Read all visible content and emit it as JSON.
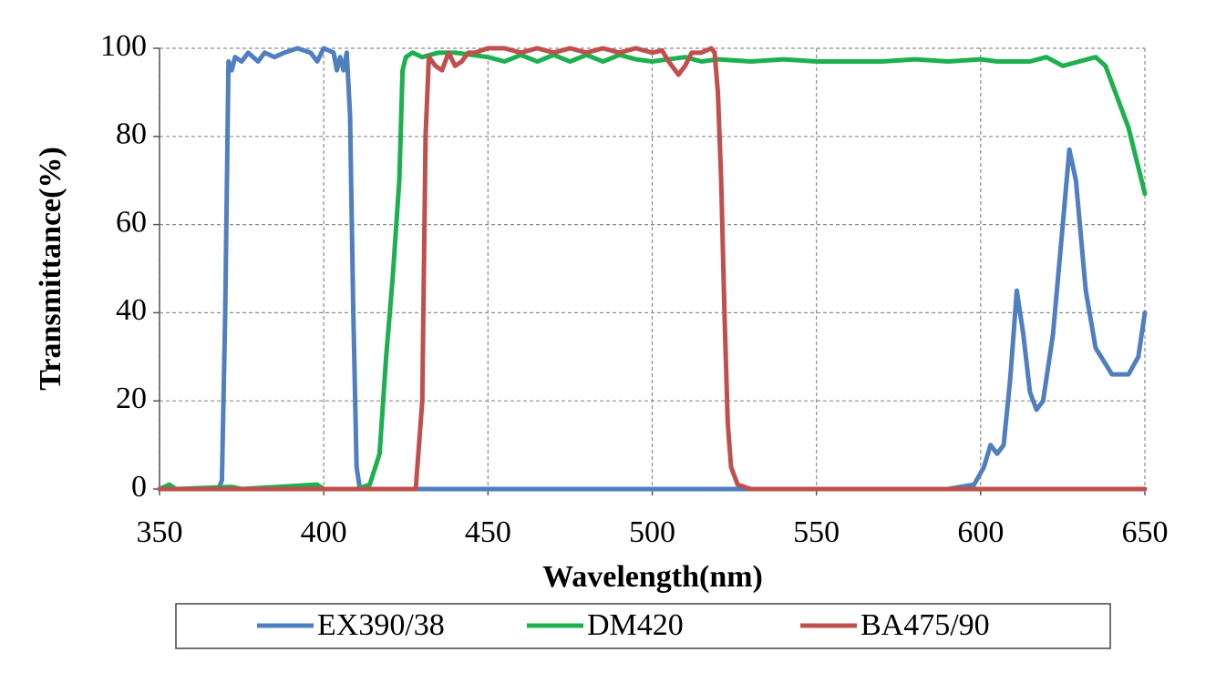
{
  "chart_data": {
    "type": "line",
    "x_label": "Wavelength(nm)",
    "y_label": "Transmittance(%)",
    "xlim": [
      350,
      650
    ],
    "ylim": [
      0,
      100
    ],
    "xticks": [
      350,
      400,
      450,
      500,
      550,
      600,
      650
    ],
    "yticks": [
      0,
      20,
      40,
      60,
      80,
      100
    ],
    "grid": true,
    "legend": "bottom",
    "series": [
      {
        "name": "EX390/38",
        "color": "#4f7fbf",
        "x": [
          350,
          368,
          369,
          370,
          371,
          372,
          373,
          375,
          377,
          380,
          382,
          385,
          388,
          392,
          396,
          398,
          400,
          403,
          404,
          405,
          406,
          407,
          408,
          409,
          410,
          411,
          590,
          598,
          601,
          603,
          605,
          607,
          609,
          611,
          613,
          615,
          617,
          619,
          622,
          625,
          627,
          629,
          632,
          635,
          640,
          645,
          648,
          650
        ],
        "values": [
          0,
          0,
          2,
          40,
          97,
          95,
          98,
          97,
          99,
          97,
          99,
          98,
          99,
          100,
          99,
          97,
          100,
          99,
          95,
          98,
          95,
          99,
          85,
          40,
          5,
          0,
          0,
          1,
          5,
          10,
          8,
          10,
          25,
          45,
          35,
          22,
          18,
          20,
          35,
          60,
          77,
          70,
          45,
          32,
          26,
          26,
          30,
          40
        ]
      },
      {
        "name": "DM420",
        "color": "#1db04f",
        "x": [
          350,
          353,
          355,
          372,
          375,
          398,
          400,
          410,
          414,
          417,
          419,
          421,
          423,
          424,
          425,
          427,
          430,
          435,
          440,
          445,
          450,
          455,
          460,
          465,
          470,
          475,
          480,
          485,
          490,
          495,
          500,
          510,
          515,
          520,
          530,
          540,
          550,
          560,
          570,
          580,
          590,
          600,
          605,
          610,
          615,
          620,
          625,
          630,
          635,
          638,
          641,
          645,
          650
        ],
        "values": [
          0,
          1,
          0,
          0.5,
          0,
          1,
          0,
          0,
          1,
          8,
          30,
          48,
          70,
          95,
          98,
          99,
          98,
          99,
          99,
          98.5,
          98,
          97,
          98.5,
          97,
          98.5,
          97,
          98.5,
          97,
          98.5,
          97.5,
          97,
          98,
          97,
          97.5,
          97,
          97.5,
          97,
          97,
          97,
          97.5,
          97,
          97.5,
          97,
          97,
          97,
          98,
          96,
          97,
          98,
          96,
          90,
          82,
          67
        ]
      },
      {
        "name": "BA475/90",
        "color": "#c0504d",
        "x": [
          350,
          428,
          430,
          431,
          432,
          434,
          436,
          438,
          440,
          442,
          444,
          446,
          450,
          455,
          460,
          465,
          470,
          475,
          480,
          485,
          490,
          495,
          500,
          503,
          505,
          508,
          510,
          512,
          515,
          518,
          519,
          520,
          521,
          522,
          523,
          524,
          526,
          530,
          650
        ],
        "values": [
          0,
          0,
          20,
          80,
          98,
          96,
          95,
          99,
          96,
          97,
          99,
          99,
          100,
          100,
          99,
          100,
          99,
          100,
          99,
          100,
          99,
          100,
          99,
          99.5,
          97,
          94,
          96,
          99,
          99,
          100,
          99,
          90,
          70,
          40,
          15,
          5,
          1,
          0,
          0
        ]
      }
    ]
  }
}
